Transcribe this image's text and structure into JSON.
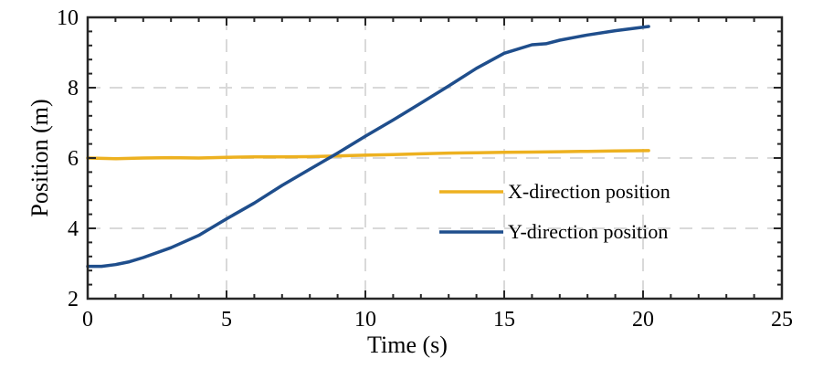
{
  "chart_data": {
    "type": "line",
    "title": "",
    "xlabel": "Time (s)",
    "ylabel": "Position (m)",
    "xlim": [
      0,
      25
    ],
    "ylim": [
      2,
      10
    ],
    "xticks": [
      0,
      5,
      10,
      15,
      20,
      25
    ],
    "yticks": [
      2,
      4,
      6,
      8,
      10
    ],
    "grid": true,
    "legend_position": "right",
    "series": [
      {
        "name": "X-direction position",
        "color": "#EDB120",
        "x": [
          0,
          1,
          2,
          3,
          4,
          5,
          6,
          7,
          8,
          9,
          10,
          11,
          12,
          13,
          14,
          15,
          16,
          17,
          18,
          19,
          20.2
        ],
        "y": [
          6.0,
          5.98,
          6.0,
          6.01,
          6.0,
          6.02,
          6.03,
          6.03,
          6.04,
          6.06,
          6.08,
          6.1,
          6.12,
          6.14,
          6.15,
          6.16,
          6.17,
          6.18,
          6.19,
          6.2,
          6.21
        ]
      },
      {
        "name": "Y-direction position",
        "color": "#1F4E8C",
        "x": [
          0,
          0.5,
          1,
          1.5,
          2,
          3,
          4,
          5,
          6,
          7,
          8,
          9,
          10,
          11,
          12,
          13,
          14,
          15,
          16,
          16.5,
          17,
          18,
          19,
          20.2
        ],
        "y": [
          2.92,
          2.92,
          2.97,
          3.05,
          3.17,
          3.45,
          3.8,
          4.27,
          4.72,
          5.22,
          5.68,
          6.14,
          6.62,
          7.08,
          7.56,
          8.05,
          8.55,
          8.98,
          9.22,
          9.25,
          9.35,
          9.5,
          9.62,
          9.74
        ]
      }
    ]
  }
}
